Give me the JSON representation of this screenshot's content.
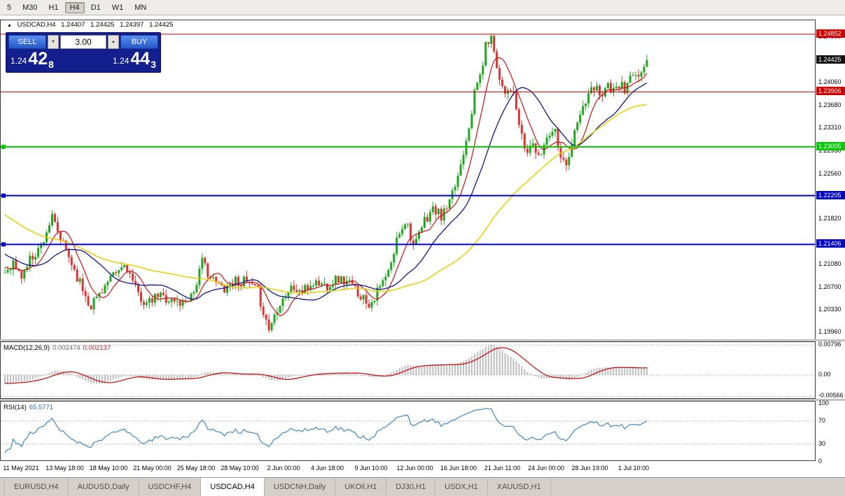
{
  "toolbar": {
    "items": [
      "5",
      "M30",
      "H1",
      "H4",
      "D1",
      "W1",
      "MN"
    ],
    "active": "H4"
  },
  "chart_header": {
    "collapse_icon": "▲",
    "symbol": "USDCAD,H4",
    "open": "1.24407",
    "high": "1.24425",
    "low": "1.24397",
    "close": "1.24425"
  },
  "trade_panel": {
    "sell_label": "SELL",
    "buy_label": "BUY",
    "volume": "3.00",
    "vol_down_icon": "▼",
    "vol_up_icon": "▲",
    "bid": {
      "prefix": "1.24",
      "big": "42",
      "sup": "8"
    },
    "ask": {
      "prefix": "1.24",
      "big": "44",
      "sup": "3"
    }
  },
  "price_axis": {
    "grid_labels": [
      "1.24800",
      "1.24060",
      "1.23680",
      "1.23310",
      "1.22930",
      "1.22560",
      "1.21820",
      "1.21080",
      "1.20700",
      "1.20330",
      "1.19960"
    ],
    "badges": [
      {
        "text": "1.24852",
        "bg": "#d40000"
      },
      {
        "text": "1.24425",
        "bg": "#111111"
      },
      {
        "text": "1.23906",
        "bg": "#d40000"
      },
      {
        "text": "1.23005",
        "bg": "#00cc00"
      },
      {
        "text": "1.22205",
        "bg": "#0000cc"
      },
      {
        "text": "1.21406",
        "bg": "#0000cc"
      }
    ]
  },
  "hlines": [
    {
      "price": 1.24852,
      "color": "#c00000",
      "width": 1,
      "marker": false
    },
    {
      "price": 1.23906,
      "color": "#c00000",
      "width": 1,
      "marker": false
    },
    {
      "price": 1.23005,
      "color": "#00cc00",
      "width": 2,
      "marker": true
    },
    {
      "price": 1.22205,
      "color": "#0000cc",
      "width": 2,
      "marker": true
    },
    {
      "price": 1.21406,
      "color": "#0000cc",
      "width": 2,
      "marker": true
    }
  ],
  "indicators": {
    "macd": {
      "label": "MACD(12,26,9)",
      "main_value": "0.002474",
      "signal_value": "0.002137",
      "axis_labels": [
        "0.00796",
        "0.00",
        "-0.00566"
      ],
      "histogram_color": "#bdbdbd",
      "signal_color": "#cc0000"
    },
    "rsi": {
      "label": "RSI(14)",
      "value": "65.5771",
      "axis_labels": [
        "100",
        "70",
        "30",
        "0"
      ],
      "levels": [
        70,
        30
      ],
      "line_color": "#3d87c0"
    }
  },
  "time_axis": {
    "labels": [
      "11 May 2021",
      "13 May 18:00",
      "18 May 10:00",
      "21 May 00:00",
      "25 May 18:00",
      "28 May 10:00",
      "2 Jun 00:00",
      "4 Jun 18:00",
      "9 Jun 10:00",
      "12 Jun 00:00",
      "16 Jun 18:00",
      "21 Jun 11:00",
      "24 Jun 00:00",
      "28 Jun 19:00",
      "1 Jul 10:00"
    ]
  },
  "tabs": {
    "items": [
      "EURUSD,H4",
      "AUDUSD,Daily",
      "USDCHF,H4",
      "USDCAD,H4",
      "USDCNH,Daily",
      "UKOil,H1",
      "DJ30,H1",
      "USDX,H1",
      "XAUUSD,H1"
    ],
    "active": "USDCAD,H4"
  },
  "chart_data": {
    "type": "candlestick",
    "symbol": "USDCAD",
    "timeframe": "H4",
    "up_color": "#1fa51f",
    "down_color": "#dd3333",
    "price_range": {
      "top": 1.2508,
      "bottom": 1.1985
    },
    "candle_count": 232,
    "prehistory_candles": 60,
    "prehistory_start": 1.229,
    "last_close": 1.24425,
    "seed": 11,
    "moving_averages": [
      {
        "period": 8,
        "color": "#cc1111",
        "width": 1.2
      },
      {
        "period": 21,
        "color": "#101585",
        "width": 1.3
      },
      {
        "period": 60,
        "color": "#e8cf00",
        "width": 1.5
      }
    ],
    "price_anchors": [
      [
        0.0,
        1.2095
      ],
      [
        0.012,
        1.2112
      ],
      [
        0.025,
        1.2086
      ],
      [
        0.04,
        1.2118
      ],
      [
        0.055,
        1.2136
      ],
      [
        0.073,
        1.2184
      ],
      [
        0.085,
        1.2152
      ],
      [
        0.1,
        1.212
      ],
      [
        0.115,
        1.2082
      ],
      [
        0.133,
        1.204
      ],
      [
        0.152,
        1.2068
      ],
      [
        0.17,
        1.2088
      ],
      [
        0.188,
        1.2109
      ],
      [
        0.205,
        1.2062
      ],
      [
        0.222,
        1.2041
      ],
      [
        0.24,
        1.2058
      ],
      [
        0.258,
        1.2049
      ],
      [
        0.276,
        1.2044
      ],
      [
        0.294,
        1.2063
      ],
      [
        0.308,
        1.2113
      ],
      [
        0.322,
        1.2083
      ],
      [
        0.34,
        1.2069
      ],
      [
        0.358,
        1.2082
      ],
      [
        0.376,
        1.2078
      ],
      [
        0.394,
        1.2062
      ],
      [
        0.411,
        1.2001
      ],
      [
        0.428,
        1.2047
      ],
      [
        0.446,
        1.2069
      ],
      [
        0.464,
        1.2062
      ],
      [
        0.482,
        1.2079
      ],
      [
        0.5,
        1.2073
      ],
      [
        0.518,
        1.2085
      ],
      [
        0.536,
        1.2077
      ],
      [
        0.554,
        1.2058
      ],
      [
        0.568,
        1.2043
      ],
      [
        0.584,
        1.2069
      ],
      [
        0.6,
        1.2099
      ],
      [
        0.613,
        1.2159
      ],
      [
        0.625,
        1.2183
      ],
      [
        0.638,
        1.2133
      ],
      [
        0.652,
        1.2176
      ],
      [
        0.666,
        1.2199
      ],
      [
        0.68,
        1.2186
      ],
      [
        0.694,
        1.2209
      ],
      [
        0.708,
        1.2263
      ],
      [
        0.722,
        1.2333
      ],
      [
        0.734,
        1.2399
      ],
      [
        0.742,
        1.2423
      ],
      [
        0.75,
        1.2471
      ],
      [
        0.756,
        1.2482
      ],
      [
        0.763,
        1.2457
      ],
      [
        0.771,
        1.2409
      ],
      [
        0.78,
        1.2393
      ],
      [
        0.789,
        1.2399
      ],
      [
        0.798,
        1.2353
      ],
      [
        0.806,
        1.2309
      ],
      [
        0.814,
        1.2289
      ],
      [
        0.822,
        1.2313
      ],
      [
        0.83,
        1.2276
      ],
      [
        0.838,
        1.2299
      ],
      [
        0.846,
        1.2323
      ],
      [
        0.856,
        1.2333
      ],
      [
        0.864,
        1.2296
      ],
      [
        0.872,
        1.2269
      ],
      [
        0.88,
        1.2293
      ],
      [
        0.89,
        1.2333
      ],
      [
        0.9,
        1.2363
      ],
      [
        0.91,
        1.2386
      ],
      [
        0.92,
        1.2399
      ],
      [
        0.93,
        1.2389
      ],
      [
        0.94,
        1.2403
      ],
      [
        0.95,
        1.2386
      ],
      [
        0.958,
        1.2406
      ],
      [
        0.966,
        1.2389
      ],
      [
        0.974,
        1.2416
      ],
      [
        0.984,
        1.2409
      ],
      [
        0.992,
        1.2429
      ],
      [
        1.0,
        1.24425
      ]
    ]
  }
}
